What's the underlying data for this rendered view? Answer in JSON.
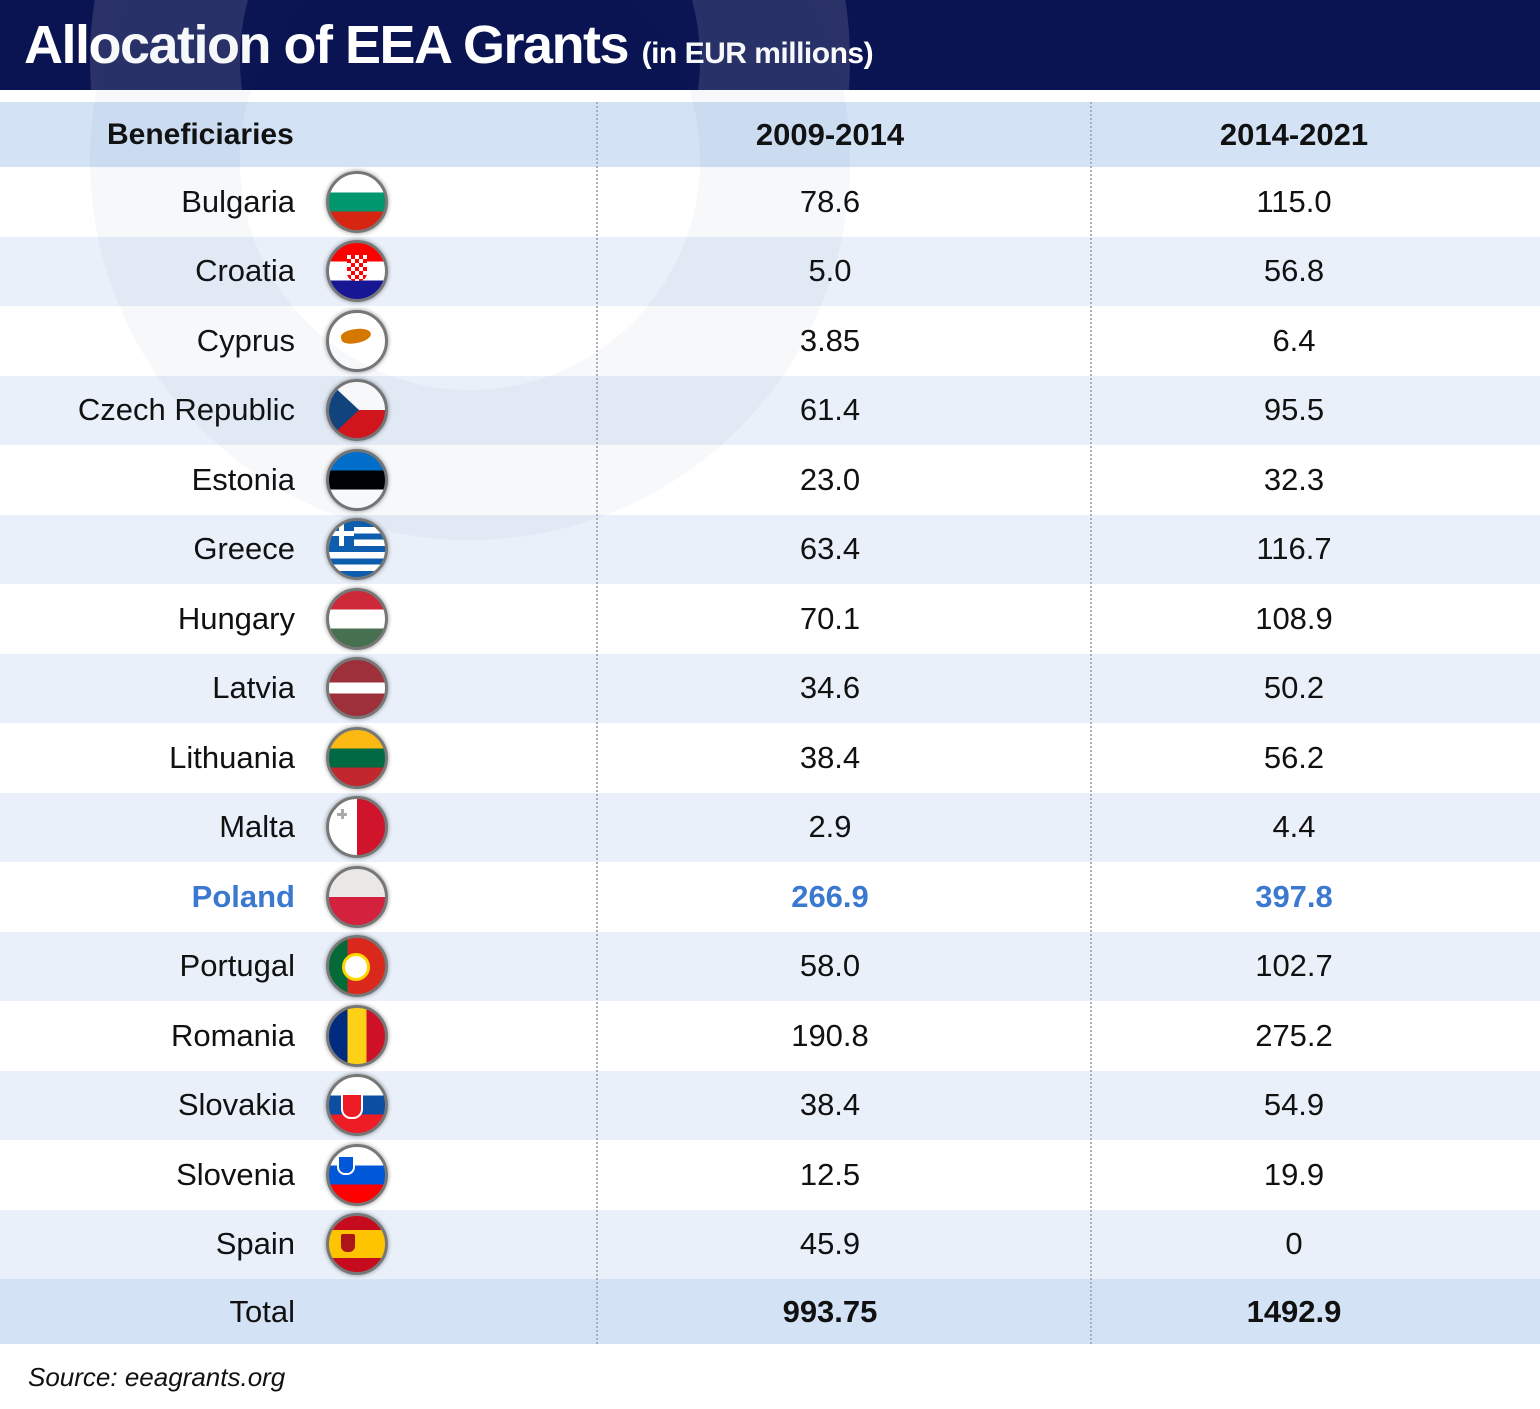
{
  "header": {
    "title": "Allocation of EEA Grants",
    "subtitle": "(in EUR millions)"
  },
  "colors": {
    "header_bg": "#0b1452",
    "highlight": "#3b78d0",
    "row_alt": "#e9f0fa",
    "header_row": "#d3e2f5"
  },
  "chart_data": {
    "type": "table",
    "columns": [
      "Beneficiaries",
      "2009-2014",
      "2014-2021"
    ],
    "rows": [
      {
        "country": "Bulgaria",
        "v2009": "78.6",
        "v2014": "115.0",
        "flag": {
          "dir": "h",
          "stripes": [
            "#ffffff",
            "#00966e",
            "#d62612"
          ]
        }
      },
      {
        "country": "Croatia",
        "v2009": "5.0",
        "v2014": "56.8",
        "flag": {
          "dir": "h",
          "stripes": [
            "#ff0000",
            "#ffffff",
            "#171796"
          ],
          "emblem": "checkerboard"
        }
      },
      {
        "country": "Cyprus",
        "v2009": "3.85",
        "v2014": "6.4",
        "flag": {
          "dir": "h",
          "stripes": [
            "#ffffff"
          ],
          "emblem": "island"
        }
      },
      {
        "country": "Czech Republic",
        "v2009": "61.4",
        "v2014": "95.5",
        "flag": {
          "dir": "h",
          "stripes": [
            "#ffffff",
            "#d7141a"
          ],
          "emblem": "triangle"
        }
      },
      {
        "country": "Estonia",
        "v2009": "23.0",
        "v2014": "32.3",
        "flag": {
          "dir": "h",
          "stripes": [
            "#0072ce",
            "#000000",
            "#ffffff"
          ]
        }
      },
      {
        "country": "Greece",
        "v2009": "63.4",
        "v2014": "116.7",
        "flag": {
          "dir": "h",
          "stripes": [
            "#0d5eaf",
            "#ffffff",
            "#0d5eaf",
            "#ffffff",
            "#0d5eaf",
            "#ffffff",
            "#0d5eaf",
            "#ffffff",
            "#0d5eaf"
          ],
          "emblem": "cross"
        }
      },
      {
        "country": "Hungary",
        "v2009": "70.1",
        "v2014": "108.9",
        "flag": {
          "dir": "h",
          "stripes": [
            "#ce2939",
            "#ffffff",
            "#477050"
          ]
        }
      },
      {
        "country": "Latvia",
        "v2009": "34.6",
        "v2014": "50.2",
        "flag": {
          "dir": "h",
          "stripes": [
            "#9e3039",
            "#9e3039",
            "#ffffff",
            "#9e3039",
            "#9e3039"
          ]
        }
      },
      {
        "country": "Lithuania",
        "v2009": "38.4",
        "v2014": "56.2",
        "flag": {
          "dir": "h",
          "stripes": [
            "#fdb913",
            "#006a44",
            "#c1272d"
          ]
        }
      },
      {
        "country": "Malta",
        "v2009": "2.9",
        "v2014": "4.4",
        "flag": {
          "dir": "v",
          "stripes": [
            "#ffffff",
            "#cf142b"
          ]
        }
      },
      {
        "country": "Poland",
        "v2009": "266.9",
        "v2014": "397.8",
        "highlight": true,
        "flag": {
          "dir": "h",
          "stripes": [
            "#e9e8e7",
            "#d4213d"
          ]
        }
      },
      {
        "country": "Portugal",
        "v2009": "58.0",
        "v2014": "102.7",
        "flag": {
          "dir": "v",
          "stripes": [
            "#046a38",
            "#da291c",
            "#da291c"
          ],
          "emblem": "shield"
        }
      },
      {
        "country": "Romania",
        "v2009": "190.8",
        "v2014": "275.2",
        "flag": {
          "dir": "v",
          "stripes": [
            "#002b7f",
            "#fcd116",
            "#ce1126"
          ]
        }
      },
      {
        "country": "Slovakia",
        "v2009": "38.4",
        "v2014": "54.9",
        "flag": {
          "dir": "h",
          "stripes": [
            "#ffffff",
            "#0b4ea2",
            "#ee1c25"
          ],
          "emblem": "shield"
        }
      },
      {
        "country": "Slovenia",
        "v2009": "12.5",
        "v2014": "19.9",
        "flag": {
          "dir": "h",
          "stripes": [
            "#ffffff",
            "#0057d8",
            "#ff0000"
          ],
          "emblem": "shield"
        }
      },
      {
        "country": "Spain",
        "v2009": "45.9",
        "v2014": "0",
        "flag": {
          "dir": "h",
          "stripes": [
            "#c60b1e",
            "#ffc400",
            "#ffc400",
            "#c60b1e"
          ],
          "emblem": "crest"
        }
      }
    ],
    "total": {
      "label": "Total",
      "v2009": "993.75",
      "v2014": "1492.9"
    }
  },
  "footer": {
    "source": "Source: eeagrants.org"
  }
}
